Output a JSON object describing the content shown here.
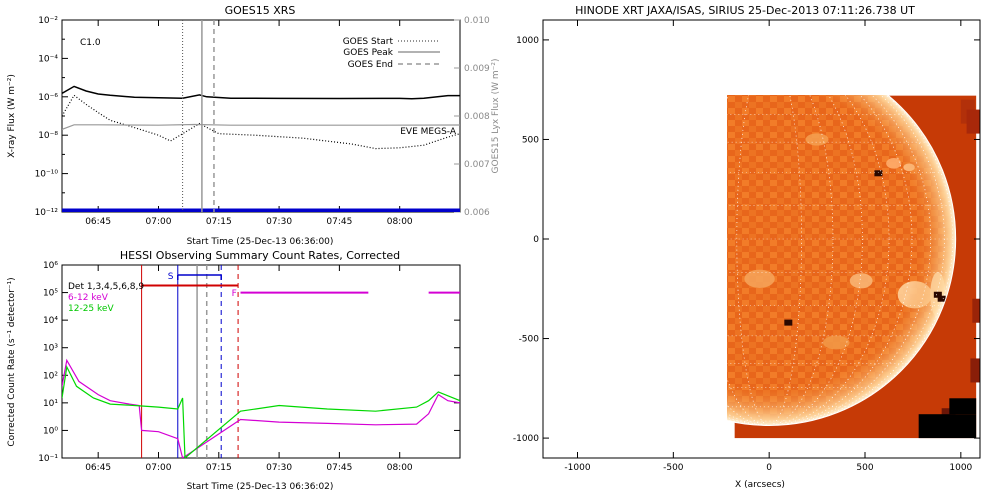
{
  "goes_panel": {
    "title": "GOES15 XRS",
    "class_label": "C1.0",
    "xlabel": "Start Time (25-Dec-13 06:36:00)",
    "ylabel_left": "X-ray Flux (W m⁻²)",
    "ylabel_right": "GOES15 Lyx Flux (W m⁻²)",
    "legend": [
      "GOES Start",
      "GOES Peak",
      "GOES End"
    ],
    "eve_label": "EVE MEGS-A"
  },
  "hessi_panel": {
    "title": "HESSI Observing Summary Count Rates, Corrected",
    "xlabel": "Start Time (25-Dec-13 06:36:02)",
    "ylabel": "Corrected Count Rate (s⁻¹ detector⁻¹)",
    "legend": [
      "Det 1,3,4,5,6,8,9",
      "6-12 keV",
      "12-25 keV"
    ],
    "s_label": "S",
    "f_label": "F"
  },
  "image_panel": {
    "title": "HINODE XRT JAXA/ISAS, SIRIUS 25-Dec-2013 07:11:26.738 UT",
    "xlabel": "X (arcsecs)"
  },
  "colors": {
    "det": "#d00000",
    "low": "#d400d4",
    "mid": "#00d800",
    "eve": "#0000cc",
    "sun_bg": "#c63a06",
    "sun_face": "#f07a22"
  },
  "chart_data": [
    {
      "type": "line",
      "title": "GOES15 XRS",
      "xlabel": "Start Time (25-Dec-13 06:36:00)",
      "ylabel": "X-ray Flux (W m⁻²)",
      "y2label": "GOES15 Lyx Flux (W m⁻²)",
      "xticks": [
        "06:45",
        "07:00",
        "07:15",
        "07:30",
        "07:45",
        "08:00"
      ],
      "xlim": [
        6.6,
        8.25
      ],
      "ylog": true,
      "ylim": [
        1e-12,
        0.01
      ],
      "yticks": [
        "10⁻¹²",
        "10⁻¹⁰",
        "10⁻⁸",
        "10⁻⁶",
        "10⁻⁴",
        "10⁻²"
      ],
      "y2lim": [
        0.006,
        0.01
      ],
      "y2ticks": [
        "0.006",
        "0.007",
        "0.008",
        "0.009",
        "0.010"
      ],
      "vlines": {
        "start": 7.1,
        "peak": 7.18,
        "end": 7.23
      },
      "eve_level": 1.2e-12,
      "series": [
        {
          "name": "",
          "style": "solid-black",
          "x": [
            6.6,
            6.65,
            6.7,
            6.75,
            6.8,
            6.9,
            7.0,
            7.1,
            7.17,
            7.2,
            7.3,
            7.5,
            7.75,
            8.0,
            8.05,
            8.1,
            8.2,
            8.25
          ],
          "y": [
            1.5e-06,
            3.5e-06,
            2e-06,
            1.4e-06,
            1.2e-06,
            9.5e-07,
            9e-07,
            8.5e-07,
            1.25e-06,
            1e-06,
            8.5e-07,
            8.3e-07,
            8.2e-07,
            8.3e-07,
            8e-07,
            8.5e-07,
            1.15e-06,
            1.15e-06
          ]
        },
        {
          "name": "",
          "style": "dotted-black",
          "x": [
            6.6,
            6.65,
            6.7,
            6.75,
            6.8,
            6.9,
            7.0,
            7.05,
            7.1,
            7.17,
            7.25,
            7.4,
            7.6,
            7.8,
            7.9,
            8.0,
            8.1,
            8.2,
            8.25
          ],
          "y": [
            1e-07,
            1.2e-06,
            4e-07,
            1.5e-07,
            6e-08,
            2.5e-08,
            1e-08,
            5e-09,
            1.2e-08,
            4e-08,
            1.2e-08,
            1e-08,
            7e-09,
            3.5e-09,
            2e-09,
            2.2e-09,
            3e-09,
            8e-09,
            1.2e-08
          ]
        },
        {
          "name": "",
          "style": "gray",
          "x": [
            6.6,
            6.65,
            6.75,
            7.0,
            7.15,
            7.3,
            7.6,
            7.9,
            8.25
          ],
          "y": [
            2e-08,
            3.5e-08,
            3.5e-08,
            3.3e-08,
            3.6e-08,
            3.3e-08,
            3.3e-08,
            3.3e-08,
            3.4e-08
          ]
        }
      ]
    },
    {
      "type": "line",
      "title": "HESSI Observing Summary Count Rates, Corrected",
      "xlabel": "Start Time (25-Dec-13 06:36:02)",
      "ylabel": "Corrected Count Rate (s⁻¹ detector⁻¹)",
      "xticks": [
        "06:45",
        "07:00",
        "07:15",
        "07:30",
        "07:45",
        "08:00"
      ],
      "xlim": [
        6.6,
        8.25
      ],
      "ylog": true,
      "ylim": [
        0.1,
        1000000.0
      ],
      "yticks": [
        "10⁻¹",
        "10⁰",
        "10¹",
        "10²",
        "10³",
        "10⁴",
        "10⁵",
        "10⁶"
      ],
      "vlines": {
        "red_left": 6.93,
        "blue_left": 7.08,
        "gray": 7.16,
        "gray_dash": 7.2,
        "blue_dash": 7.26,
        "red_dash": 7.33
      },
      "s_range": [
        7.08,
        7.26
      ],
      "series": [
        {
          "name": "Det 1,3,4,5,6,8,9",
          "x": [
            6.93,
            7.33
          ],
          "y": [
            180000.0,
            180000.0
          ]
        },
        {
          "name": "6-12 keV",
          "x": [
            6.6,
            6.62,
            6.67,
            6.75,
            6.8,
            6.88,
            6.92,
            6.93,
            7.0,
            7.08,
            7.1,
            7.34,
            7.5,
            7.7,
            7.9,
            8.07,
            8.12,
            8.16,
            8.2,
            8.25
          ],
          "y": [
            40,
            350,
            60,
            20,
            12,
            9,
            8,
            1.0,
            0.9,
            0.5,
            0.1,
            2.5,
            2.0,
            1.8,
            1.6,
            1.7,
            4,
            20,
            12,
            10
          ]
        },
        {
          "name": "12-25 keV",
          "x": [
            6.6,
            6.62,
            6.66,
            6.73,
            6.8,
            6.9,
            7.0,
            7.08,
            7.1,
            7.11,
            7.34,
            7.5,
            7.7,
            7.9,
            8.07,
            8.12,
            8.16,
            8.25
          ],
          "y": [
            15,
            200,
            40,
            15,
            9,
            8,
            7,
            6,
            15,
            0.1,
            5,
            8,
            6,
            5,
            7,
            12,
            25,
            12
          ]
        },
        {
          "name": "",
          "style": "magenta-bar",
          "segments": [
            [
              7.34,
              7.87
            ],
            [
              8.12,
              8.25
            ]
          ],
          "y": 100000.0
        }
      ]
    },
    {
      "type": "heatmap",
      "title": "HINODE XRT JAXA/ISAS, SIRIUS 25-Dec-2013 07:11:26.738 UT",
      "xlabel": "X (arcsecs)",
      "xlim": [
        -1180,
        1100
      ],
      "ylim": [
        -1100,
        1100
      ],
      "xticks": [
        -1000,
        -500,
        0,
        500,
        1000
      ],
      "yticks": [
        -1000,
        -500,
        0,
        500,
        1000
      ],
      "image_extent": {
        "x": [
          -180,
          1080
        ],
        "y": [
          -1000,
          720
        ]
      },
      "solar_radius": 973,
      "grid_spacing_deg": 10
    }
  ]
}
